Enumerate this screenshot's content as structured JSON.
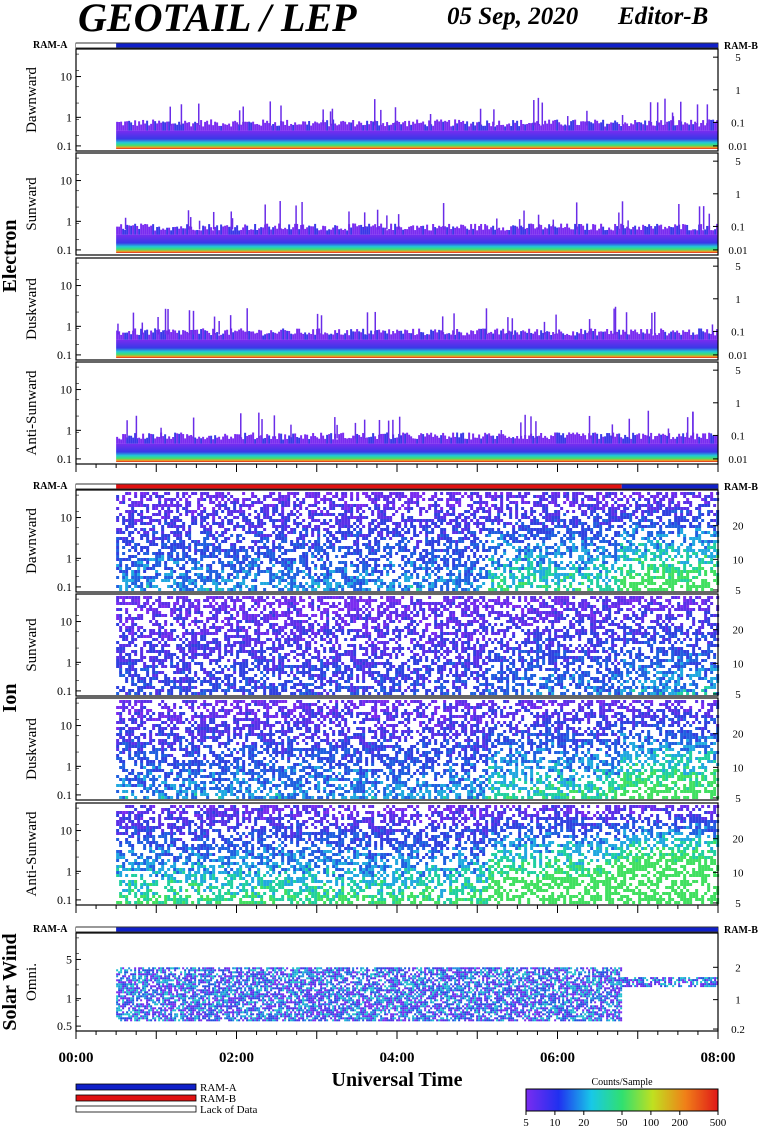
{
  "header": {
    "title": "GEOTAIL / LEP",
    "date": "05 Sep, 2020",
    "editor": "Editor-B"
  },
  "chart_data": {
    "type": "heatmap",
    "xlabel": "Universal Time",
    "x_ticks": [
      "00:00",
      "02:00",
      "04:00",
      "06:00",
      "08:00"
    ],
    "x_range_hours": [
      0,
      8
    ],
    "data_start_hour": 0.5,
    "ram_label_left": "RAM-A",
    "ram_label_right": "RAM-B",
    "groups": [
      {
        "name": "Electron",
        "ram_bar": [
          {
            "from": 0,
            "to": 0.5,
            "mode": "Lack of Data"
          },
          {
            "from": 0.5,
            "to": 8,
            "mode": "RAM-A"
          }
        ],
        "panels": [
          {
            "label": "Dawnward",
            "left_ticks": [
              "10",
              "1",
              "0.1"
            ],
            "right_ticks": [
              "5",
              "1",
              "0.1",
              "0.01"
            ]
          },
          {
            "label": "Sunward",
            "left_ticks": [
              "10",
              "1",
              "0.1"
            ],
            "right_ticks": [
              "5",
              "1",
              "0.1",
              "0.01"
            ]
          },
          {
            "label": "Duskward",
            "left_ticks": [
              "10",
              "1",
              "0.1"
            ],
            "right_ticks": [
              "5",
              "1",
              "0.1",
              "0.01"
            ]
          },
          {
            "label": "Anti-Sunward",
            "left_ticks": [
              "10",
              "1",
              "0.1"
            ],
            "right_ticks": [
              "5",
              "1",
              "0.1",
              "0.01"
            ]
          }
        ]
      },
      {
        "name": "Ion",
        "ram_bar": [
          {
            "from": 0,
            "to": 0.5,
            "mode": "Lack of Data"
          },
          {
            "from": 0.5,
            "to": 6.8,
            "mode": "RAM-B"
          },
          {
            "from": 6.8,
            "to": 8,
            "mode": "RAM-A"
          }
        ],
        "panels": [
          {
            "label": "Dawnward",
            "left_ticks": [
              "10",
              "1",
              "0.1"
            ],
            "right_ticks": [
              "20",
              "10",
              "5"
            ]
          },
          {
            "label": "Sunward",
            "left_ticks": [
              "10",
              "1",
              "0.1"
            ],
            "right_ticks": [
              "20",
              "10",
              "5"
            ]
          },
          {
            "label": "Duskward",
            "left_ticks": [
              "10",
              "1",
              "0.1"
            ],
            "right_ticks": [
              "20",
              "10",
              "5"
            ]
          },
          {
            "label": "Anti-Sunward",
            "left_ticks": [
              "10",
              "1",
              "0.1"
            ],
            "right_ticks": [
              "20",
              "10",
              "5"
            ]
          }
        ]
      },
      {
        "name": "Solar Wind",
        "ram_bar": [
          {
            "from": 0,
            "to": 0.5,
            "mode": "Lack of Data"
          },
          {
            "from": 0.5,
            "to": 8,
            "mode": "RAM-A"
          }
        ],
        "panels": [
          {
            "label": "Omni.",
            "left_ticks": [
              "5",
              "1",
              "0.5"
            ],
            "right_ticks": [
              "2",
              "1",
              "0.2"
            ]
          }
        ]
      }
    ],
    "legend": {
      "items": [
        {
          "label": "RAM-A",
          "color": "#1020c8"
        },
        {
          "label": "RAM-B",
          "color": "#e01010"
        },
        {
          "label": "Lack of Data",
          "color": "#ffffff"
        }
      ]
    },
    "colorbar": {
      "title": "Counts/Sample",
      "ticks": [
        "5",
        "10",
        "20",
        "50",
        "100",
        "200",
        "500"
      ],
      "range": [
        5,
        500
      ],
      "scale": "log"
    }
  }
}
